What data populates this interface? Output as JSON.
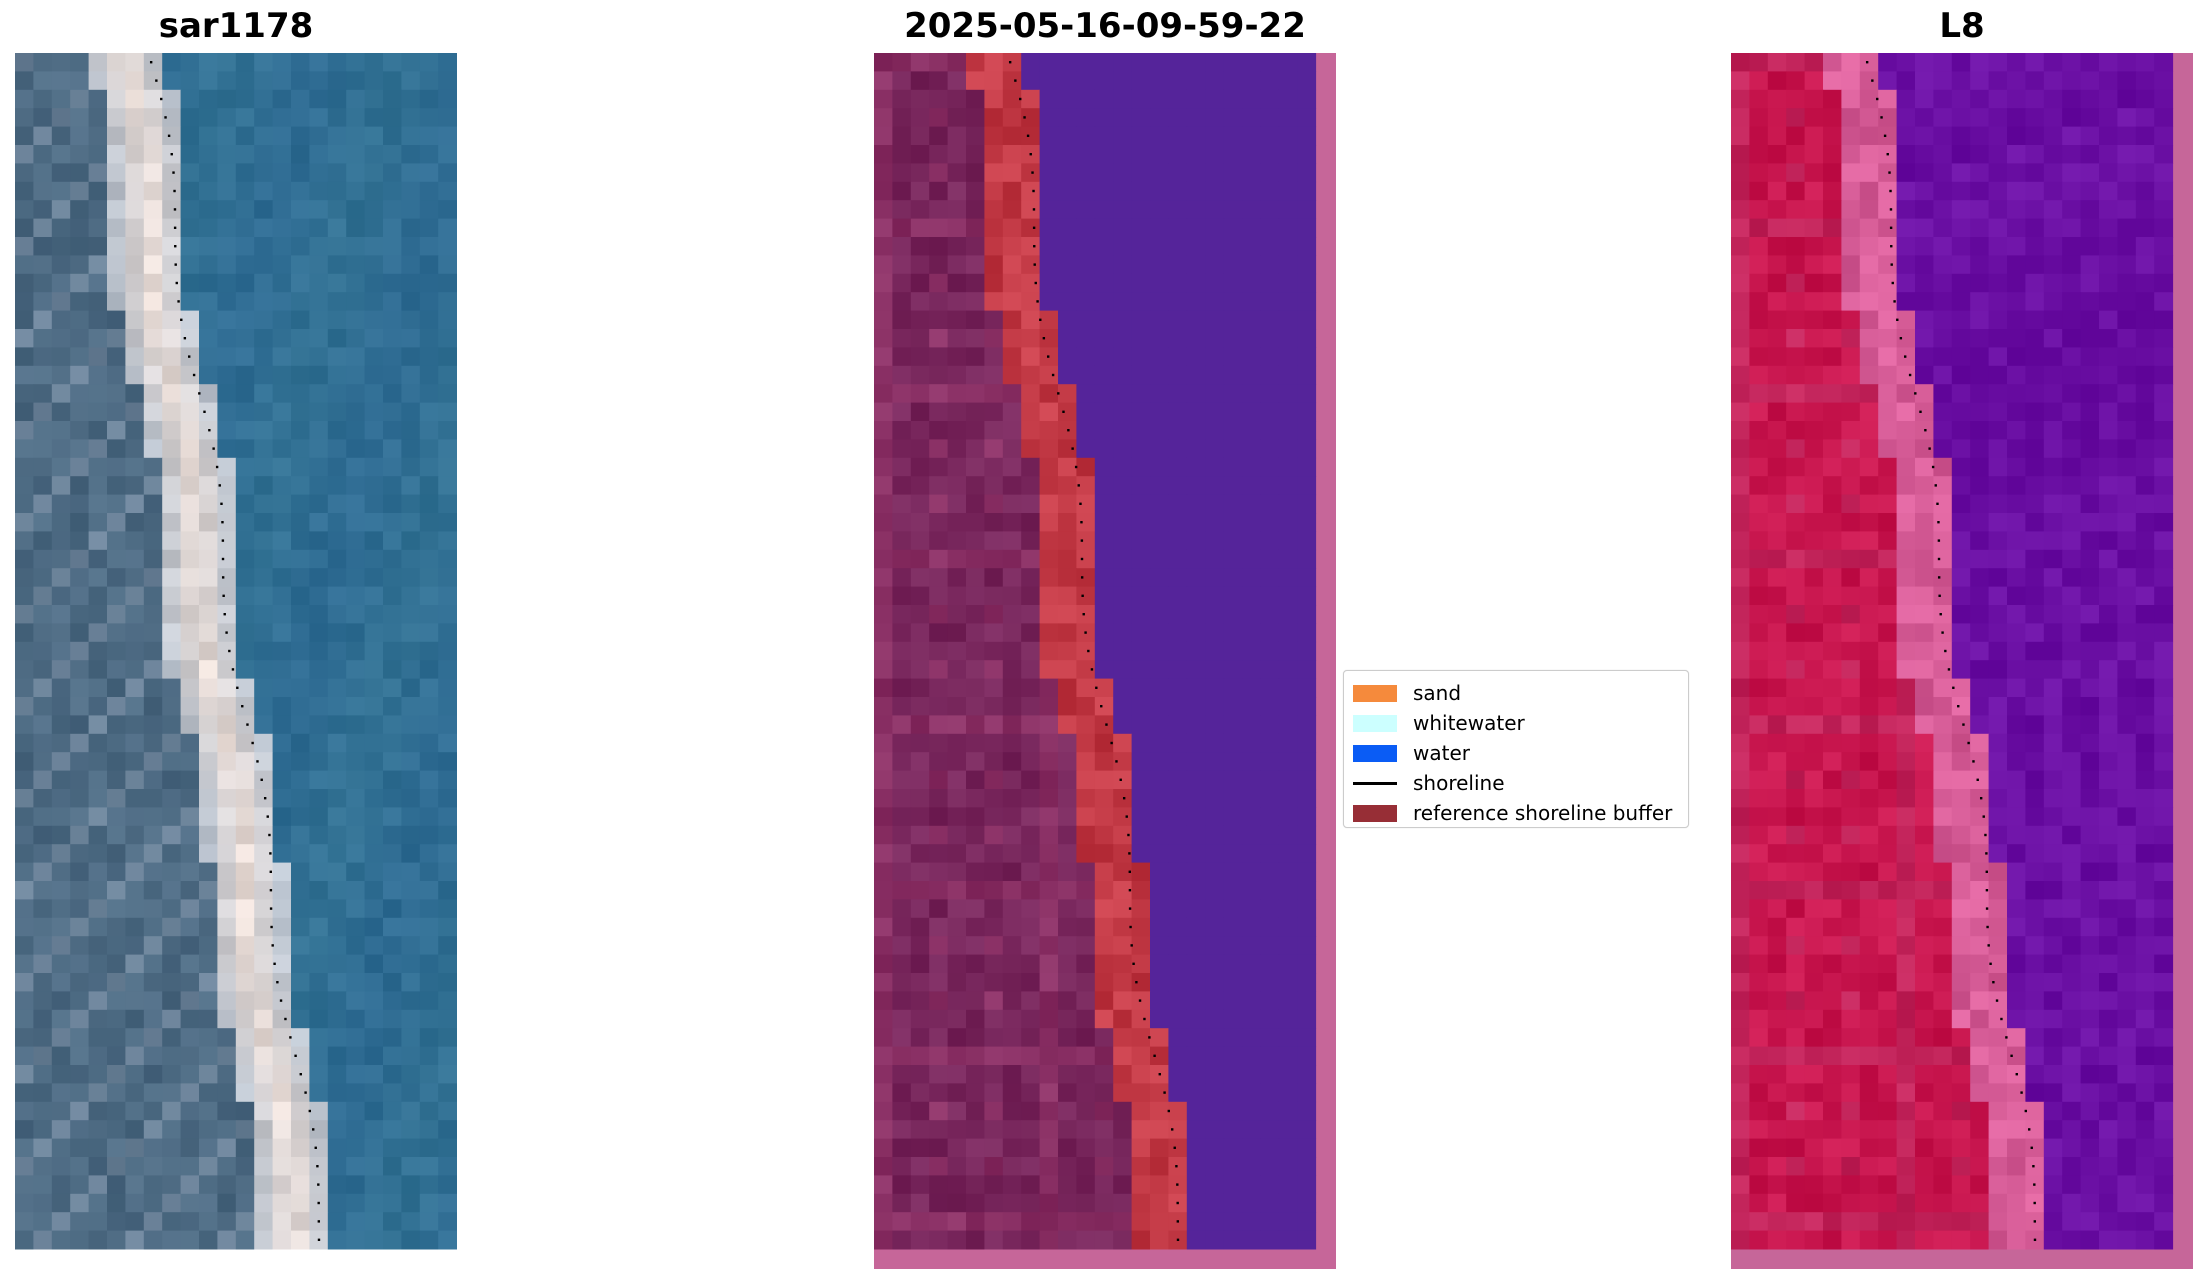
{
  "panels": [
    {
      "id": "sar",
      "title": "sar1178"
    },
    {
      "id": "classified",
      "title": "2025-05-16-09-59-22"
    },
    {
      "id": "l8",
      "title": "L8"
    }
  ],
  "legend": {
    "items": [
      {
        "label": "sand",
        "color": "#f58a3c",
        "kind": "patch"
      },
      {
        "label": "whitewater",
        "color": "#ccffff",
        "kind": "patch"
      },
      {
        "label": "water",
        "color": "#0a5cf5",
        "kind": "patch"
      },
      {
        "label": "shoreline",
        "color": "#000000",
        "kind": "line"
      },
      {
        "label": "reference shoreline buffer",
        "color": "#972e36",
        "kind": "patch"
      }
    ]
  },
  "colors": {
    "sar_water": "#2f6c93",
    "sar_land": "#3f5f78",
    "sar_beach": "#e9dcd6",
    "class_water": "#55249a",
    "class_land": "#722359",
    "class_sand": "#c23945",
    "class_border": "#c66699",
    "l8_water": "#6a0fa3",
    "l8_land": "#c9114a",
    "l8_shore": "#d86aa0"
  }
}
